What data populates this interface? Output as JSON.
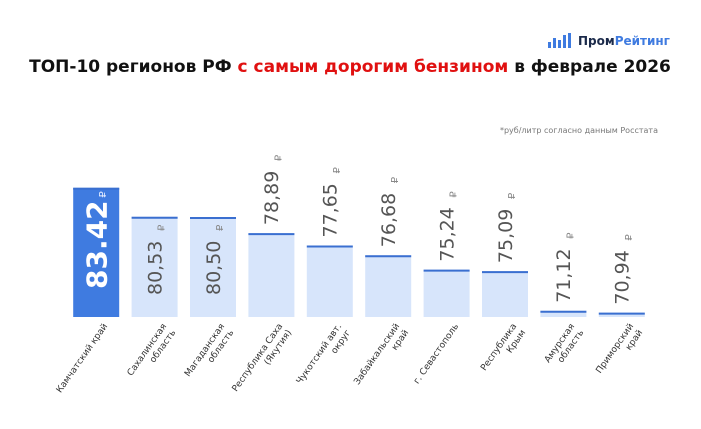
{
  "brand_parts": [
    "Пром",
    "Рейтинг"
  ],
  "chart_data": {
    "type": "bar",
    "title_parts": [
      "ТОП-10 регионов РФ ",
      "с самым дорогим бензином",
      " в феврале 2026"
    ],
    "note": "*руб/литр согласно данным Росстата",
    "unit_symbol": "₽",
    "categories": [
      "Камчатский край",
      "Сахалинская\nобласть",
      "Магаданская\nобласть",
      "Республика Саха\n(Якутия)",
      "Чукотский авт.\nокруг",
      "Забайкальский\nкрай",
      "г. Севастополь",
      "Республика\nКрым",
      "Амурская\nобласть",
      "Приморский\nкрай"
    ],
    "values": [
      83.42,
      80.53,
      80.5,
      78.89,
      77.65,
      76.68,
      75.24,
      75.09,
      71.12,
      70.94
    ],
    "value_labels": [
      "83.42",
      "80,53",
      "80,50",
      "78,89",
      "77,65",
      "76,68",
      "75,24",
      "75,09",
      "71,12",
      "70,94"
    ],
    "ylim": [
      70.5,
      83.5
    ],
    "color": "#d7e5fb",
    "highlight_color": "#3f7be0",
    "edge_color": "#3a6fd0"
  }
}
